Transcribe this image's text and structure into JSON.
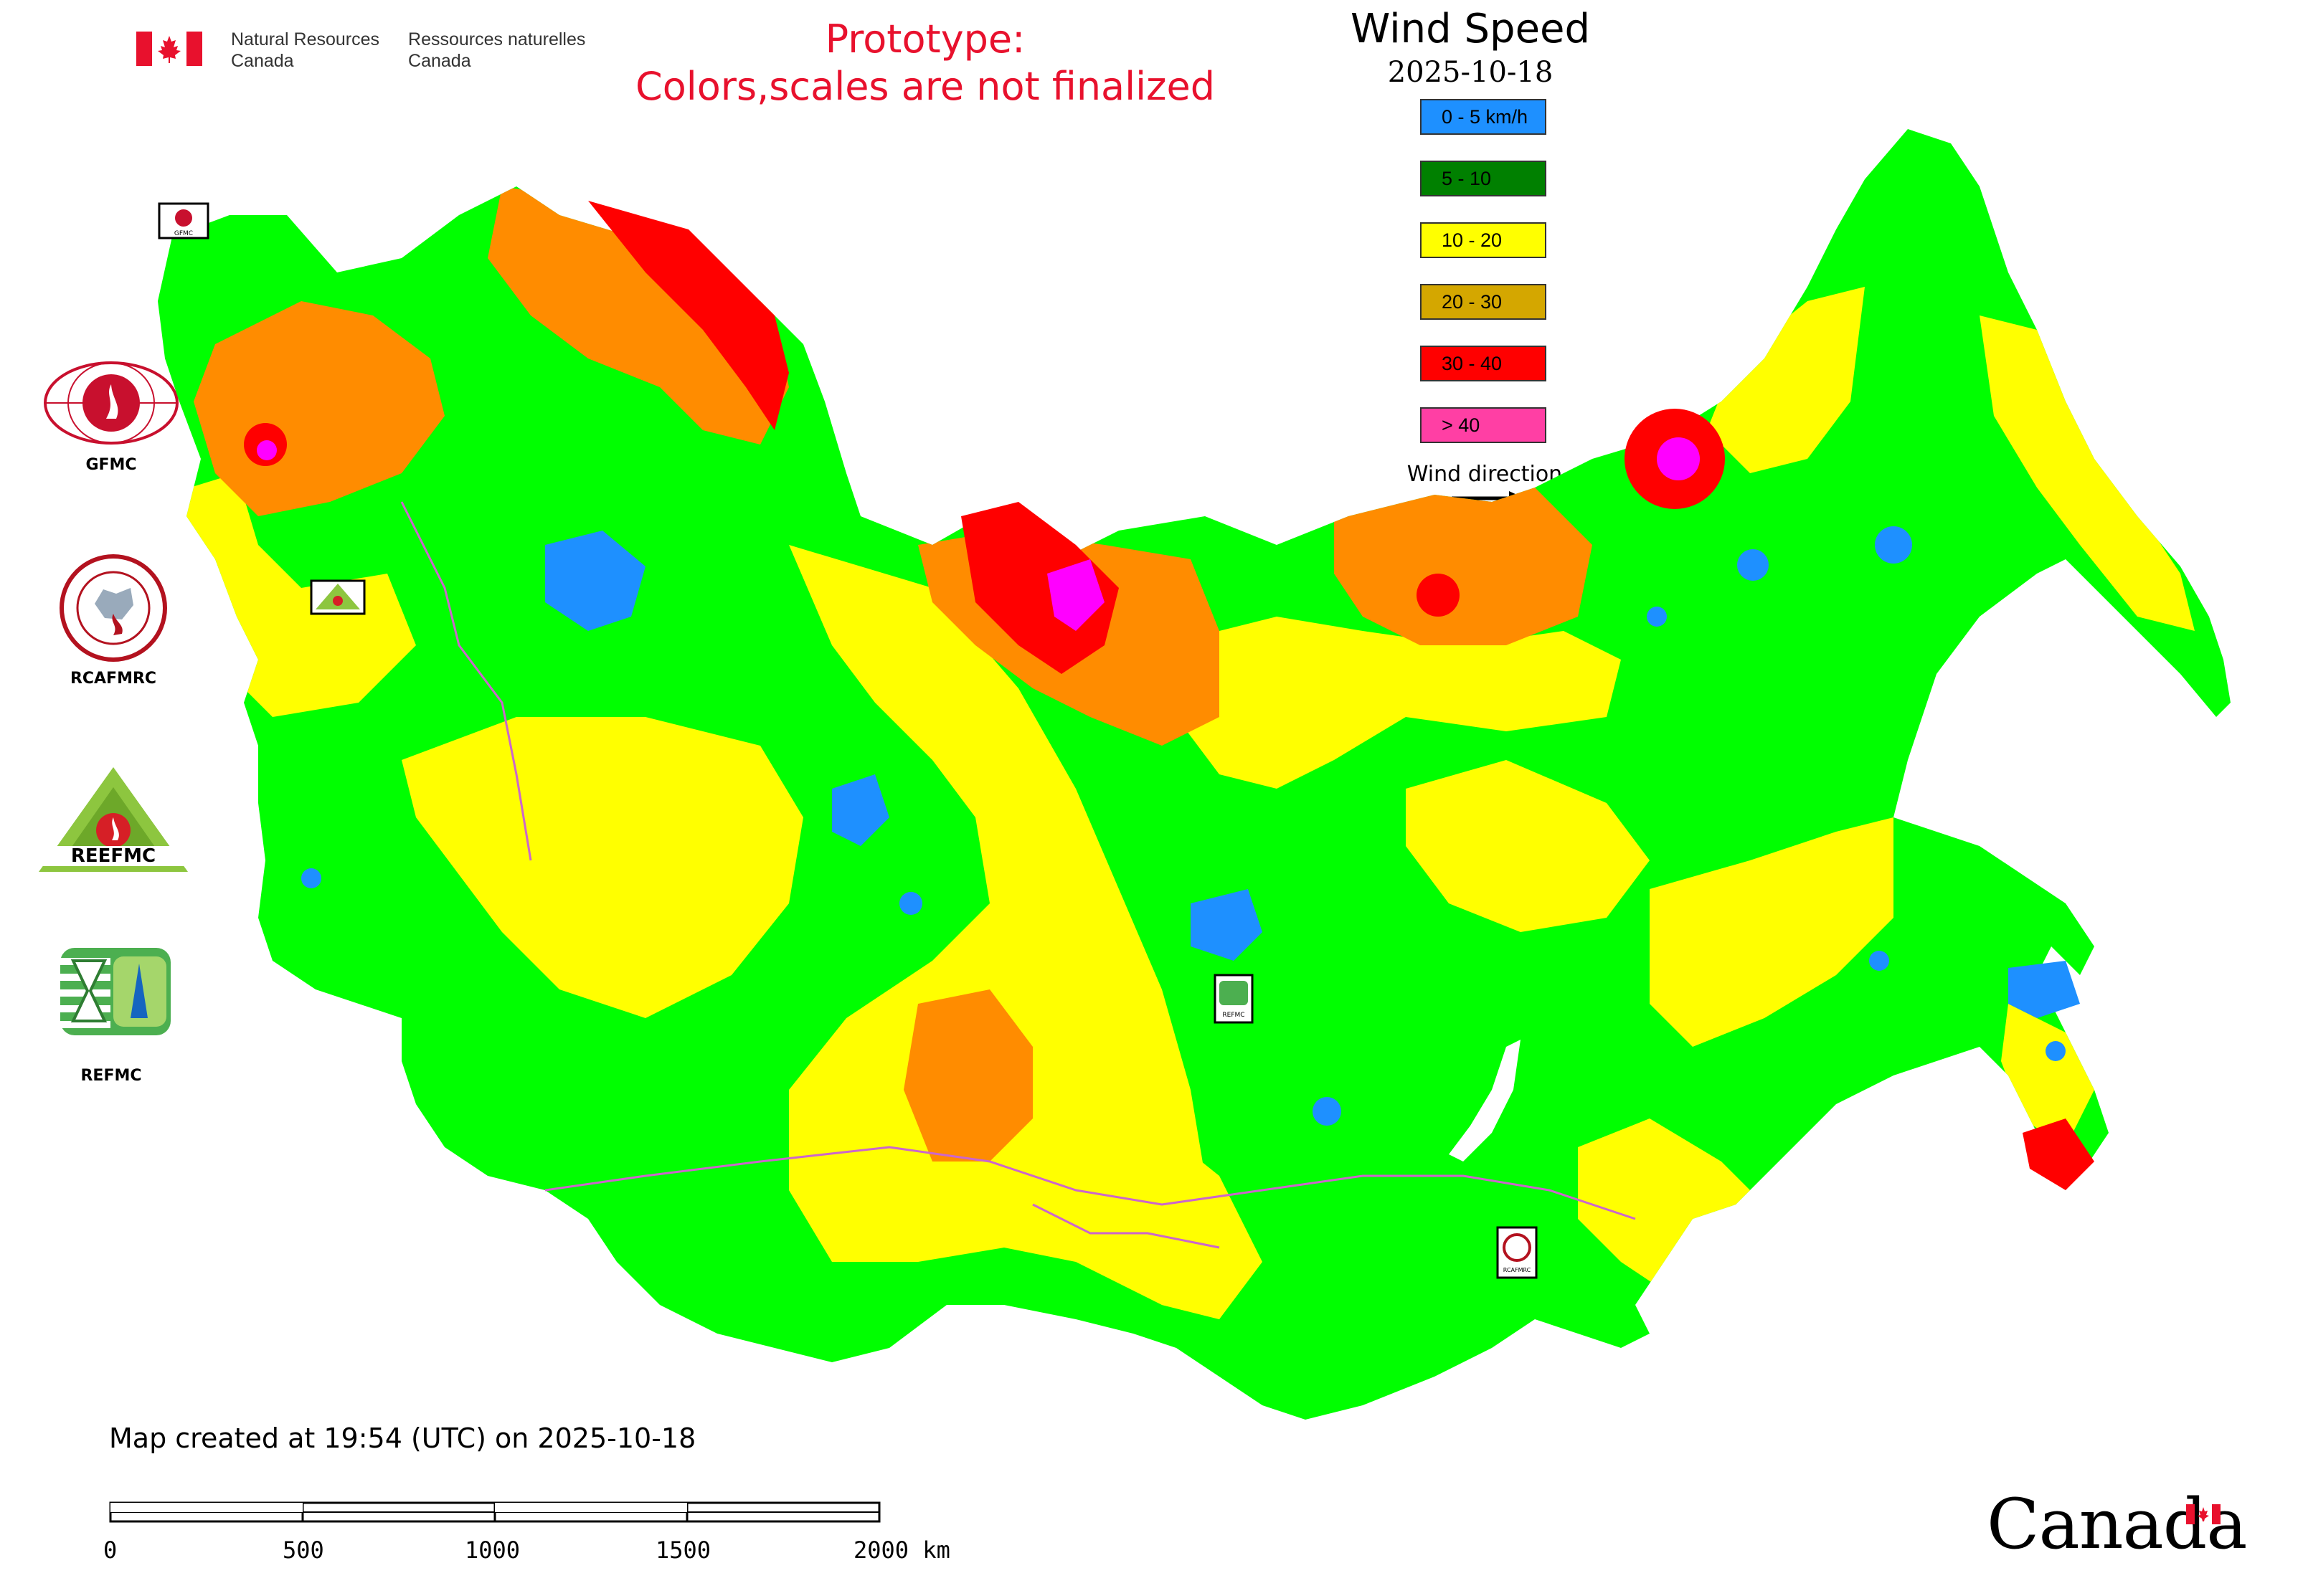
{
  "header": {
    "agency_en_line1": "Natural Resources",
    "agency_en_line2": "Canada",
    "agency_fr_line1": "Ressources naturelles",
    "agency_fr_line2": "Canada",
    "prototype_line1": "Prototype:",
    "prototype_line2": "Colors,scales are not finalized"
  },
  "legend": {
    "title": "Wind Speed",
    "date": "2025-10-18",
    "items": [
      {
        "label": "0 - 5 km/h",
        "color": "#1e90ff"
      },
      {
        "label": "5 - 10",
        "color": "#008000"
      },
      {
        "label": "10 - 20",
        "color": "#ffff00"
      },
      {
        "label": "20 - 30",
        "color": "#d4a700"
      },
      {
        "label": "30 - 40",
        "color": "#ff0000"
      },
      {
        "label": "> 40",
        "color": "#ff3fa4"
      }
    ],
    "wind_direction_label": "Wind direction"
  },
  "map_colors": {
    "calm": "#1e90ff",
    "light": "#00ff00",
    "moderate": "#ffff00",
    "fresh": "#ff8c00",
    "strong": "#ff0000",
    "gale": "#ff00ff",
    "border": "#cc66cc"
  },
  "logos": [
    {
      "label": "GFMC",
      "icon": "gfmc-logo"
    },
    {
      "label": "RCAFMRC",
      "icon": "rcafmrc-logo"
    },
    {
      "label": "REEFMC",
      "icon": "reefmc-logo"
    },
    {
      "label": "REFMC",
      "icon": "refmc-logo"
    }
  ],
  "map_markers": [
    {
      "label": "GFMC",
      "icon": "gfmc-marker"
    },
    {
      "label": "REEFMC",
      "icon": "reefmc-marker"
    },
    {
      "label": "REFMC",
      "icon": "refmc-marker"
    },
    {
      "label": "RCAFMRC",
      "icon": "rcafmrc-marker"
    }
  ],
  "footer": {
    "created_text": "Map created at 19:54 (UTC) on 2025-10-18",
    "scale_ticks": [
      "0",
      "500",
      "1000",
      "1500",
      "2000 km"
    ],
    "wordmark": "Canada"
  }
}
